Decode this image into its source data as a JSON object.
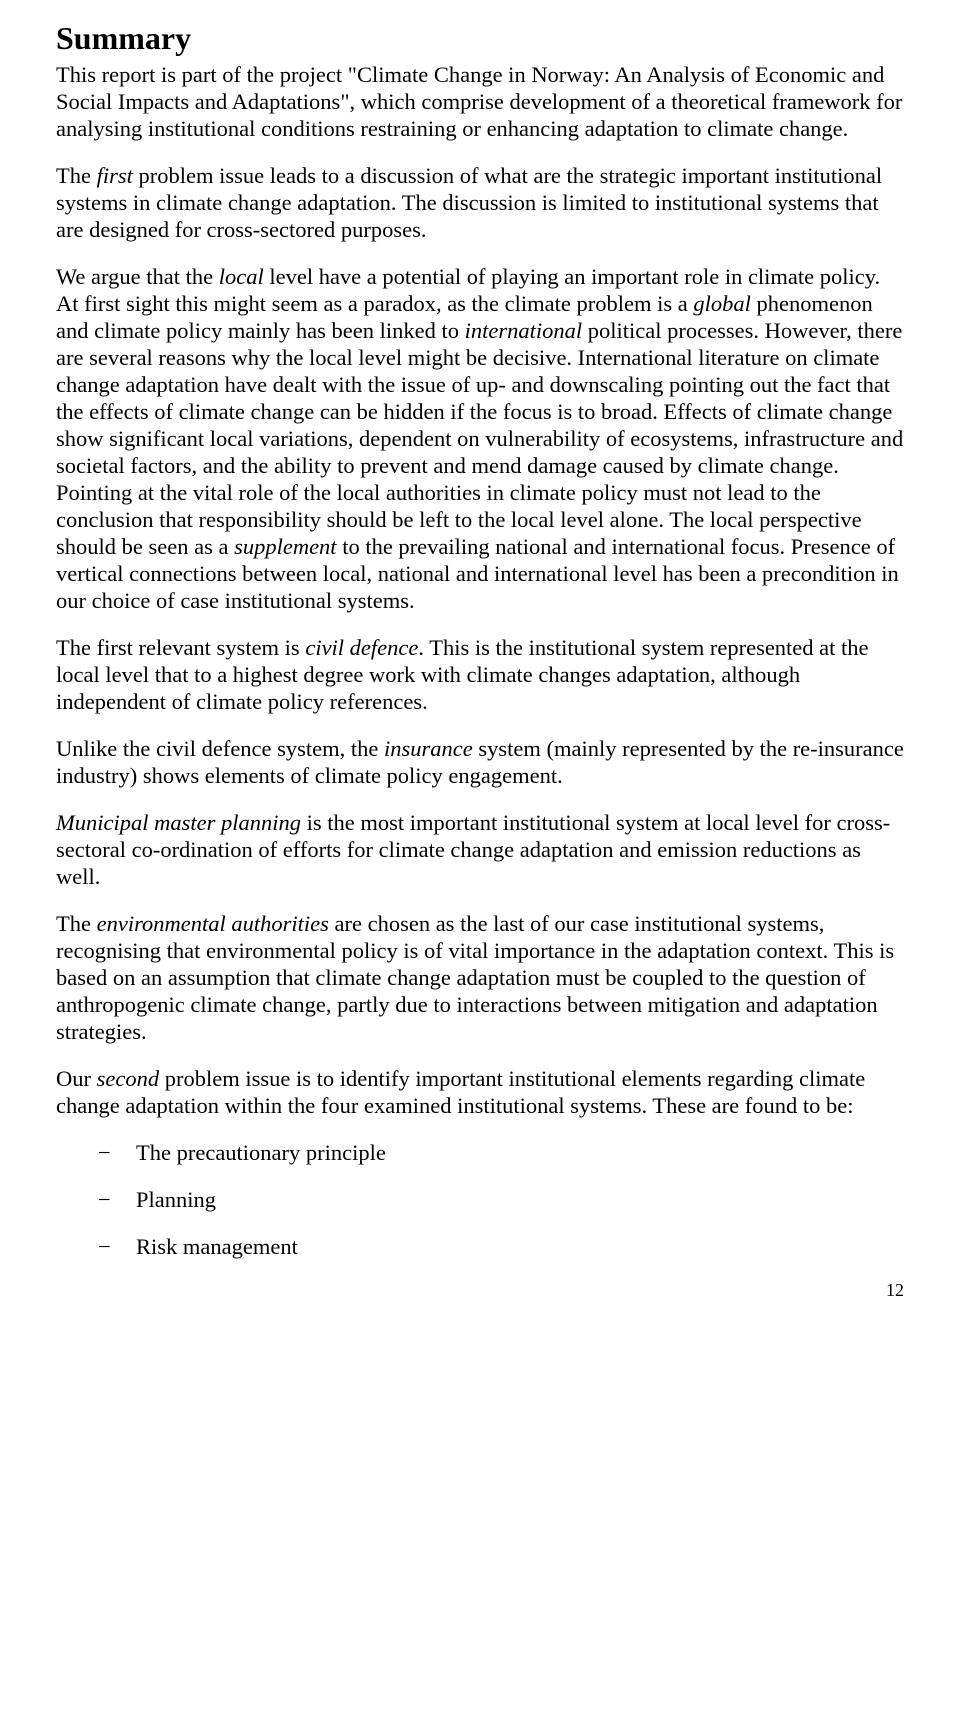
{
  "title": "Summary",
  "paragraphs": {
    "p1_a": "This report is part of the project \"Climate Change in Norway: An Analysis of Economic and Social Impacts and Adaptations\", which comprise development of a theoretical framework for analysing institutional conditions restraining or enhancing adaptation to climate change.",
    "p2_a": "The ",
    "p2_b": "first",
    "p2_c": " problem issue leads to a discussion of what are the strategic important institutional systems in climate change adaptation. The discussion is limited to institutional systems that are designed for cross-sectored purposes.",
    "p3_a": "We argue that the ",
    "p3_b": "local",
    "p3_c": " level have a potential of playing an important role in climate policy. At first sight this might seem as a paradox, as the climate problem is a ",
    "p3_d": "global",
    "p3_e": " phenomenon and climate policy mainly has been linked to ",
    "p3_f": "international",
    "p3_g": " political processes. However, there are several reasons why the local level might be decisive. International literature on climate change adaptation have dealt with the issue of up- and downscaling pointing out the fact that the effects of climate change can be hidden if the focus is to broad. Effects of climate change show significant local variations, dependent on vulnerability of ecosystems, infrastructure and societal factors, and the ability to prevent and mend damage caused by climate change. Pointing at the vital role of the local authorities in climate policy must not lead to the conclusion that responsibility should be left to the local level alone. The local perspective should be seen as a ",
    "p3_h": "supplement",
    "p3_i": " to the prevailing national and international focus. Presence of vertical connections between local, national and international level has been a precondition in our choice of case institutional systems.",
    "p4_a": "The first relevant system is ",
    "p4_b": "civil defence",
    "p4_c": ". This is the institutional system represented at the local level that to a highest degree work with climate changes adaptation, although independent of climate policy references.",
    "p5_a": "Unlike the civil defence system, the ",
    "p5_b": "insurance",
    "p5_c": " system (mainly represented by the re-insurance industry) shows elements of climate policy engagement.",
    "p6_a": "Municipal master planning",
    "p6_b": " is the most important institutional system at local level for cross-sectoral co-ordination of efforts for climate change adaptation and emission reductions as well.",
    "p7_a": "The ",
    "p7_b": "environmental authorities",
    "p7_c": " are chosen as the last of our case institutional systems, recognising that environmental policy is of vital importance in the adaptation context. This is based on an assumption that climate change adaptation must be coupled to the question of anthropogenic climate change, partly due to interactions between mitigation and adaptation strategies.",
    "p8_a": "Our ",
    "p8_b": "second",
    "p8_c": " problem issue is to identify important institutional elements regarding climate change adaptation within the four examined institutional systems. These are found to be:"
  },
  "bullets": {
    "b1": "The precautionary principle",
    "b2": "Planning",
    "b3": "Risk management"
  },
  "pagenum": "12"
}
